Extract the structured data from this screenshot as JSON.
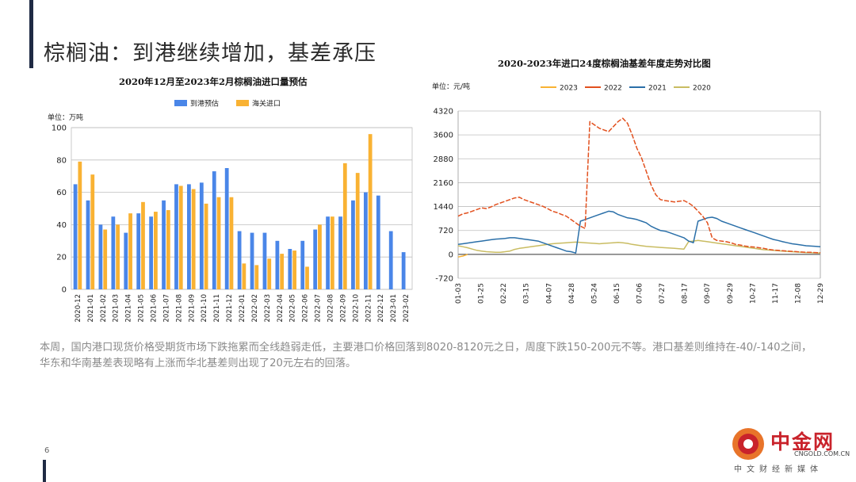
{
  "page": {
    "title": "棕榈油：到港继续增加，基差承压",
    "page_number": "6",
    "body_text": "本周，国内港口现货价格受期货市场下跌拖累而全线趋弱走低，主要港口价格回落到8020-8120元之日，周度下跌150-200元不等。港口基差则维持在-40/-140之间，华东和华南基差表现略有上涨而华北基差则出现了20元左右的回落。"
  },
  "logo": {
    "name": "中金网",
    "url": "CNGOLD.COM.CN",
    "tagline": "中文财经新媒体"
  },
  "chart_data": [
    {
      "type": "bar",
      "title": "2020年12月至2023年2月棕榈油进口量预估",
      "unit": "单位：万吨",
      "ylim": [
        0,
        100
      ],
      "yticks": [
        0,
        20,
        40,
        60,
        80,
        100
      ],
      "grid": true,
      "legend_position": "top",
      "categories": [
        "2020-12",
        "2021-01",
        "2021-02",
        "2021-03",
        "2021-04",
        "2021-05",
        "2021-06",
        "2021-07",
        "2021-08",
        "2021-09",
        "2021-10",
        "2021-11",
        "2021-12",
        "2022-01",
        "2022-02",
        "2022-03",
        "2022-04",
        "2022-05",
        "2022-06",
        "2022-07",
        "2022-08",
        "2022-09",
        "2022-10",
        "2022-11",
        "2022-12",
        "2023-01",
        "2023-02"
      ],
      "series": [
        {
          "name": "到港预估",
          "color": "#4a86e8",
          "values": [
            65,
            55,
            40,
            45,
            35,
            47,
            45,
            55,
            65,
            65,
            66,
            73,
            75,
            36,
            35,
            35,
            30,
            25,
            30,
            37,
            45,
            45,
            55,
            60,
            58,
            36,
            23
          ]
        },
        {
          "name": "海关进口",
          "color": "#f9b233",
          "values": [
            79,
            71,
            37,
            40,
            47,
            54,
            48,
            49,
            64,
            62,
            53,
            57,
            57,
            16,
            15,
            19,
            22,
            24,
            14,
            40,
            45,
            78,
            72,
            96,
            null,
            null,
            null
          ]
        }
      ]
    },
    {
      "type": "line",
      "title": "2020-2023年进口24度棕榈油基差年度走势对比图",
      "unit": "单位：元/吨",
      "ylim": [
        -720,
        4320
      ],
      "yticks": [
        -720,
        0,
        720,
        1440,
        2160,
        2880,
        3600,
        4320
      ],
      "grid": true,
      "legend_position": "top",
      "x_labels": [
        "01-03",
        "01-25",
        "02-22",
        "03-15",
        "04-07",
        "04-28",
        "05-24",
        "06-15",
        "07-06",
        "07-27",
        "08-17",
        "09-07",
        "09-29",
        "10-27",
        "11-17",
        "12-08",
        "12-29"
      ],
      "series": [
        {
          "name": "2023",
          "color": "#f9b233",
          "dash": false,
          "values": [
            -80,
            -50,
            0
          ]
        },
        {
          "name": "2022",
          "color": "#e2501e",
          "dash": true,
          "values": [
            1150,
            1220,
            1250,
            1300,
            1350,
            1400,
            1380,
            1430,
            1500,
            1550,
            1600,
            1650,
            1700,
            1720,
            1650,
            1600,
            1550,
            1500,
            1450,
            1380,
            1300,
            1260,
            1200,
            1150,
            1050,
            950,
            850,
            780,
            4000,
            3900,
            3800,
            3750,
            3700,
            3850,
            4000,
            4100,
            3950,
            3600,
            3200,
            2900,
            2500,
            2100,
            1800,
            1650,
            1620,
            1600,
            1580,
            1600,
            1620,
            1550,
            1450,
            1300,
            1150,
            950,
            500,
            420,
            400,
            380,
            350,
            300,
            280,
            250,
            230,
            220,
            200,
            180,
            150,
            130,
            120,
            110,
            100,
            90,
            80,
            70,
            60,
            60,
            55,
            50
          ]
        },
        {
          "name": "2021",
          "color": "#2a6fa8",
          "dash": false,
          "values": [
            300,
            320,
            340,
            360,
            380,
            400,
            420,
            440,
            460,
            470,
            480,
            500,
            500,
            480,
            460,
            440,
            420,
            400,
            350,
            300,
            250,
            200,
            150,
            100,
            80,
            40,
            1000,
            1050,
            1100,
            1150,
            1200,
            1250,
            1300,
            1280,
            1200,
            1150,
            1100,
            1080,
            1050,
            1000,
            950,
            850,
            780,
            720,
            700,
            650,
            600,
            550,
            500,
            400,
            350,
            1000,
            1050,
            1100,
            1120,
            1080,
            1000,
            950,
            900,
            850,
            800,
            750,
            700,
            650,
            600,
            550,
            500,
            450,
            420,
            380,
            350,
            320,
            300,
            280,
            260,
            250,
            240,
            230
          ]
        },
        {
          "name": "2020",
          "color": "#c9bc62",
          "dash": false,
          "values": [
            260,
            230,
            200,
            160,
            120,
            100,
            80,
            70,
            60,
            60,
            80,
            100,
            150,
            180,
            200,
            220,
            240,
            260,
            280,
            300,
            320,
            330,
            340,
            350,
            360,
            370,
            360,
            350,
            340,
            330,
            320,
            330,
            340,
            350,
            360,
            350,
            330,
            300,
            280,
            260,
            240,
            230,
            220,
            210,
            200,
            190,
            180,
            170,
            160,
            380,
            400,
            420,
            400,
            380,
            360,
            340,
            320,
            300,
            280,
            260,
            240,
            220,
            200,
            180,
            160,
            140,
            130,
            120,
            110,
            100,
            90,
            80,
            70,
            60,
            55,
            50,
            45,
            40
          ]
        }
      ]
    }
  ]
}
